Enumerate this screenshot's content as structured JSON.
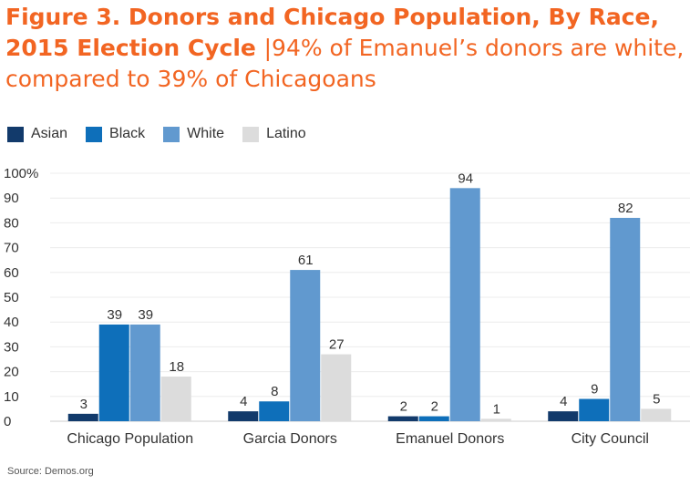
{
  "header": {
    "title_bold": "Figure 3. Donors and Chicago Population, By Race, 2015 Election Cycle",
    "separator": "|",
    "title_rest": "94% of Emanuel’s donors are white, compared to 39% of Chicagoans"
  },
  "colors": {
    "title": "#f26522",
    "Asian": "#123a6b",
    "Black": "#0e6fba",
    "White": "#6199cf",
    "Latino": "#dcdcdc"
  },
  "source": "Source: Demos.org",
  "chart_data": {
    "type": "bar",
    "categories": [
      "Chicago Population",
      "Garcia Donors",
      "Emanuel Donors",
      "City Council"
    ],
    "series": [
      {
        "name": "Asian",
        "values": [
          3,
          4,
          2,
          4
        ]
      },
      {
        "name": "Black",
        "values": [
          39,
          8,
          2,
          9
        ]
      },
      {
        "name": "White",
        "values": [
          39,
          61,
          94,
          82
        ]
      },
      {
        "name": "Latino",
        "values": [
          18,
          27,
          1,
          5
        ]
      }
    ],
    "y_ticks": [
      "0",
      "10",
      "20",
      "30",
      "40",
      "50",
      "60",
      "70",
      "80",
      "90",
      "100%"
    ],
    "ylim": [
      0,
      100
    ],
    "grid": true,
    "legend_position": "top-left"
  }
}
